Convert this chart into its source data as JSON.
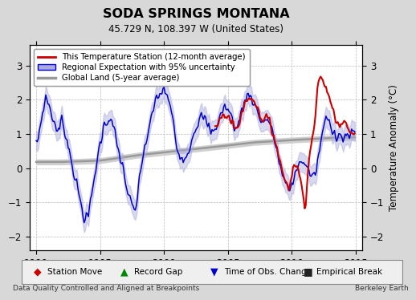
{
  "title": "SODA SPRINGS MONTANA",
  "subtitle": "45.729 N, 108.397 W (United States)",
  "ylabel": "Temperature Anomaly (°C)",
  "xlim": [
    1989.5,
    2015.5
  ],
  "ylim": [
    -2.4,
    3.6
  ],
  "yticks": [
    -2,
    -1,
    0,
    1,
    2,
    3
  ],
  "xticks": [
    1990,
    1995,
    2000,
    2005,
    2010,
    2015
  ],
  "background_color": "#d8d8d8",
  "plot_bg_color": "#ffffff",
  "footer_left": "Data Quality Controlled and Aligned at Breakpoints",
  "footer_right": "Berkeley Earth",
  "legend_main": [
    "This Temperature Station (12-month average)",
    "Regional Expectation with 95% uncertainty",
    "Global Land (5-year average)"
  ],
  "legend_bottom": [
    [
      "◆",
      "#cc0000",
      "Station Move"
    ],
    [
      "▲",
      "#008800",
      "Record Gap"
    ],
    [
      "▼",
      "#0000cc",
      "Time of Obs. Change"
    ],
    [
      "■",
      "#222222",
      "Empirical Break"
    ]
  ],
  "red_line_color": "#cc0000",
  "blue_line_color": "#0000cc",
  "blue_fill_color": "#aaaadd",
  "gray_line_color": "#999999",
  "gray_fill_color": "#cccccc",
  "global_t": [
    1990,
    1992,
    1995,
    1998,
    2001,
    2004,
    2007,
    2010,
    2013,
    2014.9
  ],
  "global_v": [
    0.18,
    0.18,
    0.22,
    0.38,
    0.5,
    0.62,
    0.75,
    0.82,
    0.88,
    0.9
  ],
  "blue_t": [
    1990.0,
    1990.3,
    1990.7,
    1991.0,
    1991.3,
    1991.7,
    1992.0,
    1992.3,
    1992.7,
    1993.0,
    1993.3,
    1993.7,
    1994.0,
    1994.3,
    1994.7,
    1995.0,
    1995.3,
    1995.7,
    1996.0,
    1996.3,
    1996.7,
    1997.0,
    1997.3,
    1997.7,
    1998.0,
    1998.3,
    1998.7,
    1999.0,
    1999.3,
    1999.7,
    2000.0,
    2000.3,
    2000.7,
    2001.0,
    2001.3,
    2001.7,
    2002.0,
    2002.3,
    2002.7,
    2003.0,
    2003.3,
    2003.7,
    2004.0,
    2004.3,
    2004.7,
    2005.0,
    2005.3,
    2005.7,
    2006.0,
    2006.3,
    2006.7,
    2007.0,
    2007.3,
    2007.7,
    2008.0,
    2008.3,
    2008.7,
    2009.0,
    2009.3,
    2009.7,
    2010.0,
    2010.3,
    2010.7,
    2011.0,
    2011.3,
    2011.7,
    2012.0,
    2012.3,
    2012.7,
    2013.0,
    2013.5,
    2014.0,
    2014.9
  ],
  "blue_v": [
    0.6,
    1.3,
    2.1,
    1.8,
    1.4,
    1.0,
    1.5,
    0.9,
    0.3,
    -0.3,
    -0.8,
    -1.4,
    -1.5,
    -0.8,
    0.2,
    0.8,
    1.3,
    1.5,
    1.2,
    0.6,
    0.1,
    -0.5,
    -1.0,
    -1.3,
    -0.5,
    0.4,
    1.0,
    1.5,
    2.0,
    2.2,
    2.3,
    2.0,
    1.3,
    0.5,
    0.4,
    0.3,
    0.7,
    1.1,
    1.4,
    1.5,
    1.3,
    1.0,
    1.2,
    1.5,
    1.8,
    1.7,
    1.4,
    1.1,
    1.7,
    2.0,
    2.2,
    1.9,
    1.6,
    1.3,
    1.5,
    1.2,
    0.7,
    0.1,
    -0.3,
    -0.7,
    -0.4,
    -0.1,
    0.3,
    0.1,
    -0.1,
    -0.3,
    0.2,
    1.0,
    1.5,
    1.2,
    1.0,
    0.9,
    1.0
  ],
  "red_t": [
    2004.0,
    2004.3,
    2004.7,
    2005.0,
    2005.3,
    2005.7,
    2006.0,
    2006.3,
    2006.7,
    2007.0,
    2007.3,
    2007.7,
    2008.0,
    2008.3,
    2008.7,
    2009.0,
    2009.3,
    2009.7,
    2010.0,
    2010.3,
    2010.7,
    2011.0,
    2011.3,
    2011.7,
    2012.0,
    2012.3,
    2012.7,
    2013.0,
    2013.3,
    2013.7,
    2014.0,
    2014.5,
    2014.9
  ],
  "red_v": [
    1.2,
    1.4,
    1.6,
    1.5,
    1.3,
    1.1,
    1.6,
    1.9,
    2.1,
    2.0,
    1.7,
    1.4,
    1.5,
    1.2,
    0.8,
    0.2,
    -0.2,
    -0.6,
    -0.1,
    0.2,
    -0.5,
    -1.1,
    0.3,
    1.2,
    2.5,
    2.6,
    2.3,
    1.9,
    1.5,
    1.2,
    1.5,
    1.1,
    1.0
  ]
}
